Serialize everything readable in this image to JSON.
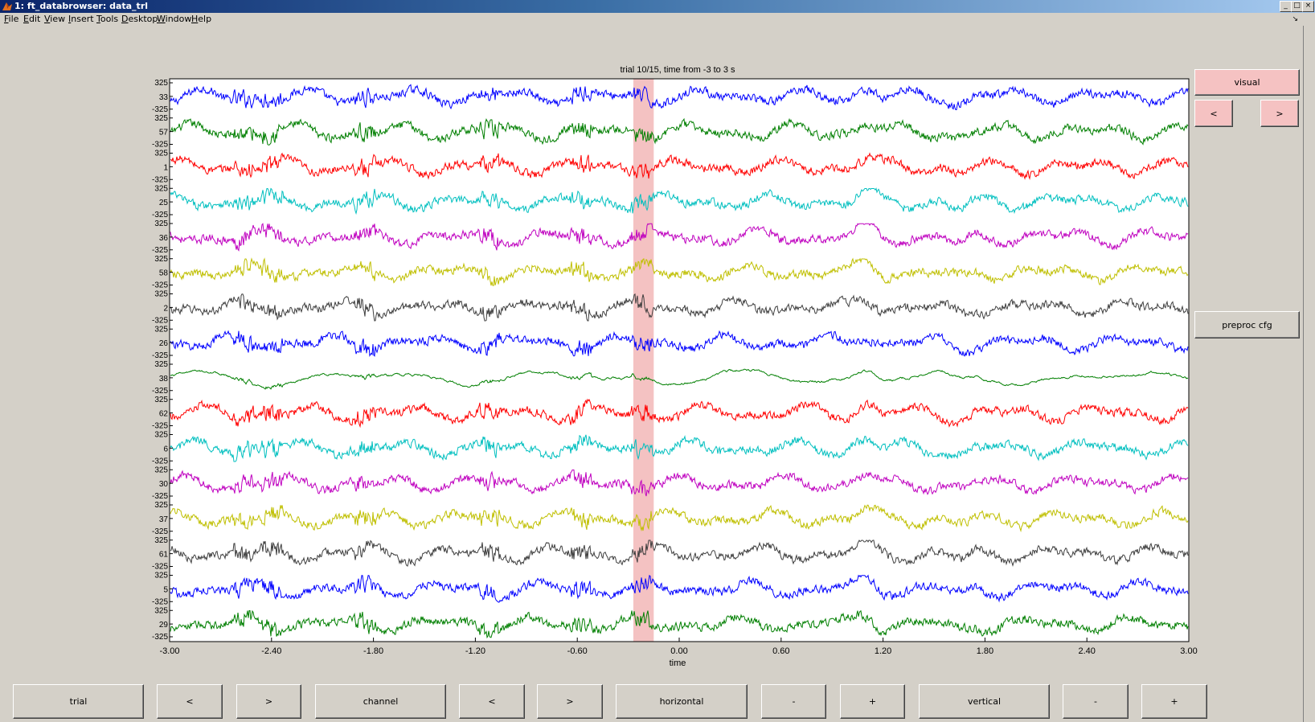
{
  "window": {
    "title": "1: ft_databrowser: data_trl",
    "controls": [
      "_",
      "□",
      "×"
    ]
  },
  "menu": [
    {
      "label": "File",
      "u": "F",
      "rest": "ile"
    },
    {
      "label": "Edit",
      "u": "E",
      "rest": "dit"
    },
    {
      "label": "View",
      "u": "V",
      "rest": "iew"
    },
    {
      "label": "Insert",
      "u": "I",
      "rest": "nsert"
    },
    {
      "label": "Tools",
      "u": "T",
      "rest": "ools"
    },
    {
      "label": "Desktop",
      "u": "D",
      "rest": "esktop"
    },
    {
      "label": "Window",
      "u": "W",
      "rest": "indow"
    },
    {
      "label": "Help",
      "u": "H",
      "rest": "elp"
    }
  ],
  "chart_data": {
    "type": "line",
    "title": "trial 10/15, time from -3 to 3 s",
    "xlabel": "time",
    "xlim": [
      -3,
      3
    ],
    "xticks": [
      "-3.00",
      "-2.40",
      "-1.80",
      "-1.20",
      "-0.60",
      "0.00",
      "0.60",
      "1.20",
      "1.80",
      "2.40",
      "3.00"
    ],
    "ylim_per_channel": [
      -325,
      325
    ],
    "ytick_top": "325",
    "ytick_bottom": "-325",
    "highlight": {
      "from": -0.27,
      "to": -0.15,
      "color": "#f4c2c2"
    },
    "channels": [
      {
        "label": "33",
        "color": "#0000ff"
      },
      {
        "label": "57",
        "color": "#007f00"
      },
      {
        "label": "1",
        "color": "#ff0000"
      },
      {
        "label": "25",
        "color": "#00bfbf"
      },
      {
        "label": "36",
        "color": "#bf00bf"
      },
      {
        "label": "58",
        "color": "#bfbf00"
      },
      {
        "label": "2",
        "color": "#3f3f3f"
      },
      {
        "label": "26",
        "color": "#0000ff"
      },
      {
        "label": "38",
        "color": "#007f00"
      },
      {
        "label": "62",
        "color": "#ff0000"
      },
      {
        "label": "6",
        "color": "#00bfbf"
      },
      {
        "label": "30",
        "color": "#bf00bf"
      },
      {
        "label": "37",
        "color": "#bfbf00"
      },
      {
        "label": "61",
        "color": "#3f3f3f"
      },
      {
        "label": "5",
        "color": "#0000ff"
      },
      {
        "label": "29",
        "color": "#007f00"
      }
    ]
  },
  "side_buttons": {
    "visual": "visual",
    "prev": "<",
    "next": ">",
    "preproc": "preproc cfg"
  },
  "bottom_buttons": {
    "trial": "trial",
    "trial_prev": "<",
    "trial_next": ">",
    "channel": "channel",
    "channel_prev": "<",
    "channel_next": ">",
    "horizontal": "horizontal",
    "horizontal_minus": "-",
    "horizontal_plus": "+",
    "vertical": "vertical",
    "vertical_minus": "-",
    "vertical_plus": "+"
  }
}
